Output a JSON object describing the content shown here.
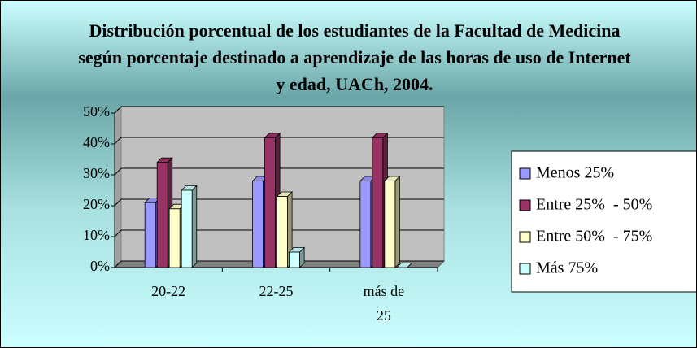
{
  "chart_data": {
    "type": "bar",
    "title": "Distribución porcentual de los estudiantes de la Facultad de Medicina según porcentaje destinado a aprendizaje de las horas de uso de Internet y edad, UACh, 2004.",
    "categories": [
      "20-22",
      "22-25",
      "más de 25"
    ],
    "series": [
      {
        "name": "Menos 25%",
        "color": "#9999ff",
        "values": [
          21,
          28,
          28
        ]
      },
      {
        "name": "Entre 25%  - 50%",
        "color": "#993366",
        "values": [
          34,
          42,
          42
        ]
      },
      {
        "name": "Entre 50%  - 75%",
        "color": "#ffffcc",
        "values": [
          19,
          23,
          28
        ]
      },
      {
        "name": "Más 75%",
        "color": "#ccffff",
        "values": [
          25,
          5,
          0
        ]
      }
    ],
    "ylim": [
      0,
      50
    ],
    "yticks": [
      {
        "value": 0,
        "label": "0%"
      },
      {
        "value": 10,
        "label": "10%"
      },
      {
        "value": 20,
        "label": "20%"
      },
      {
        "value": 30,
        "label": "30%"
      },
      {
        "value": 40,
        "label": "40%"
      },
      {
        "value": 50,
        "label": "50%"
      }
    ],
    "grid": true,
    "legend": "right"
  }
}
